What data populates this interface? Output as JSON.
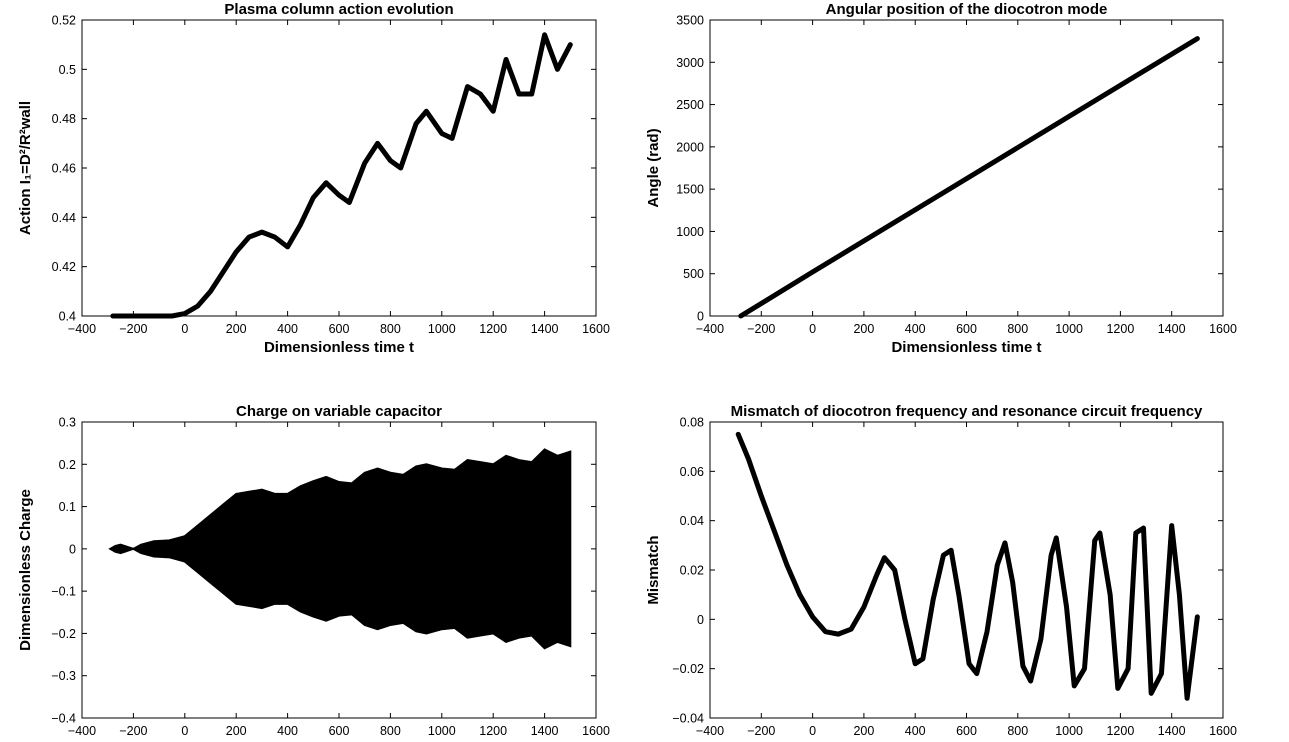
{
  "chart_data": [
    {
      "type": "line",
      "title": "Plasma column action evolution",
      "xlabel": "Dimensionless time t",
      "ylabel": "Action I₁=D²/R²wall",
      "xlim": [
        -400,
        1600
      ],
      "ylim": [
        0.4,
        0.52
      ],
      "xticks": [
        "-400",
        "-200",
        "0",
        "200",
        "400",
        "600",
        "800",
        "1000",
        "1200",
        "1400",
        "1600"
      ],
      "yticks": [
        "0.4",
        "0.42",
        "0.44",
        "0.46",
        "0.48",
        "0.5",
        "0.52"
      ],
      "series": [
        {
          "x": [
            -280,
            -200,
            -100,
            -50,
            0,
            50,
            100,
            150,
            200,
            250,
            300,
            350,
            400,
            450,
            500,
            550,
            600,
            640,
            700,
            750,
            800,
            840,
            900,
            940,
            1000,
            1040,
            1100,
            1150,
            1200,
            1250,
            1300,
            1350,
            1400,
            1450,
            1500
          ],
          "y": [
            0.4,
            0.4,
            0.4,
            0.4,
            0.401,
            0.404,
            0.41,
            0.418,
            0.426,
            0.432,
            0.434,
            0.432,
            0.428,
            0.437,
            0.448,
            0.454,
            0.449,
            0.446,
            0.462,
            0.47,
            0.463,
            0.46,
            0.478,
            0.483,
            0.474,
            0.472,
            0.493,
            0.49,
            0.483,
            0.504,
            0.49,
            0.49,
            0.514,
            0.5,
            0.51
          ]
        }
      ]
    },
    {
      "type": "line",
      "title": "Angular position of the diocotron mode",
      "xlabel": "Dimensionless time t",
      "ylabel": "Angle (rad)",
      "xlim": [
        -400,
        1600
      ],
      "ylim": [
        0,
        3500
      ],
      "xticks": [
        "-400",
        "-200",
        "0",
        "200",
        "400",
        "600",
        "800",
        "1000",
        "1200",
        "1400",
        "1600"
      ],
      "yticks": [
        "0",
        "500",
        "1000",
        "1500",
        "2000",
        "2500",
        "3000",
        "3500"
      ],
      "series": [
        {
          "x": [
            -280,
            0,
            500,
            1000,
            1500
          ],
          "y": [
            0,
            520,
            1440,
            2360,
            3280
          ]
        }
      ]
    },
    {
      "type": "area",
      "title": "Charge on variable capacitor",
      "xlabel": "Dimensionless time t",
      "ylabel": "Dimensionless Charge",
      "xlim": [
        -400,
        1600
      ],
      "ylim": [
        -0.4,
        0.3
      ],
      "xticks": [
        "-400",
        "-200",
        "0",
        "200",
        "400",
        "600",
        "800",
        "1000",
        "1200",
        "1400",
        "1600"
      ],
      "yticks": [
        "-0.4",
        "-0.3",
        "-0.2",
        "-0.1",
        "0",
        "0.1",
        "0.2",
        "0.3"
      ],
      "series": [
        {
          "x": [
            -290,
            -270,
            -250,
            -230,
            -200,
            -170,
            -120,
            -60,
            0,
            50,
            100,
            150,
            200,
            250,
            300,
            350,
            400,
            450,
            500,
            550,
            600,
            650,
            700,
            750,
            800,
            850,
            900,
            940,
            1000,
            1050,
            1100,
            1150,
            1200,
            1250,
            1300,
            1350,
            1400,
            1450,
            1500
          ],
          "upper": [
            0,
            0.007,
            0.01,
            0.006,
            0,
            0.01,
            0.018,
            0.02,
            0.03,
            0.055,
            0.08,
            0.105,
            0.13,
            0.135,
            0.14,
            0.13,
            0.13,
            0.148,
            0.16,
            0.17,
            0.158,
            0.155,
            0.18,
            0.19,
            0.18,
            0.175,
            0.195,
            0.2,
            0.19,
            0.187,
            0.21,
            0.205,
            0.2,
            0.22,
            0.21,
            0.205,
            0.235,
            0.22,
            0.23
          ],
          "lower": [
            0,
            -0.007,
            -0.01,
            -0.006,
            0,
            -0.01,
            -0.018,
            -0.02,
            -0.03,
            -0.055,
            -0.08,
            -0.105,
            -0.13,
            -0.135,
            -0.14,
            -0.13,
            -0.13,
            -0.148,
            -0.16,
            -0.17,
            -0.158,
            -0.155,
            -0.18,
            -0.19,
            -0.18,
            -0.175,
            -0.195,
            -0.2,
            -0.19,
            -0.187,
            -0.21,
            -0.205,
            -0.2,
            -0.22,
            -0.21,
            -0.205,
            -0.235,
            -0.22,
            -0.23
          ]
        }
      ]
    },
    {
      "type": "line",
      "title": "Mismatch of diocotron frequency and resonance circuit frequency",
      "xlabel": "Dimensionless time t",
      "ylabel": "Mismatch",
      "xlim": [
        -400,
        1600
      ],
      "ylim": [
        -0.04,
        0.08
      ],
      "xticks": [
        "-400",
        "-200",
        "0",
        "200",
        "400",
        "600",
        "800",
        "1000",
        "1200",
        "1400",
        "1600"
      ],
      "yticks": [
        "-0.04",
        "-0.02",
        "0",
        "0.02",
        "0.04",
        "0.06",
        "0.08"
      ],
      "series": [
        {
          "x": [
            -290,
            -250,
            -200,
            -150,
            -100,
            -50,
            0,
            50,
            100,
            150,
            200,
            250,
            280,
            320,
            360,
            400,
            430,
            470,
            510,
            540,
            570,
            610,
            640,
            680,
            720,
            750,
            780,
            820,
            850,
            890,
            930,
            950,
            990,
            1020,
            1060,
            1100,
            1120,
            1160,
            1190,
            1230,
            1260,
            1290,
            1320,
            1360,
            1400,
            1430,
            1460,
            1500
          ],
          "y": [
            0.075,
            0.065,
            0.05,
            0.036,
            0.022,
            0.01,
            0.001,
            -0.005,
            -0.006,
            -0.004,
            0.005,
            0.018,
            0.025,
            0.02,
            0,
            -0.018,
            -0.016,
            0.008,
            0.026,
            0.028,
            0.01,
            -0.018,
            -0.022,
            -0.005,
            0.022,
            0.031,
            0.015,
            -0.019,
            -0.025,
            -0.008,
            0.026,
            0.033,
            0.005,
            -0.027,
            -0.02,
            0.032,
            0.035,
            0.01,
            -0.028,
            -0.02,
            0.035,
            0.037,
            -0.03,
            -0.022,
            0.038,
            0.01,
            -0.032,
            0.001
          ]
        }
      ]
    }
  ]
}
